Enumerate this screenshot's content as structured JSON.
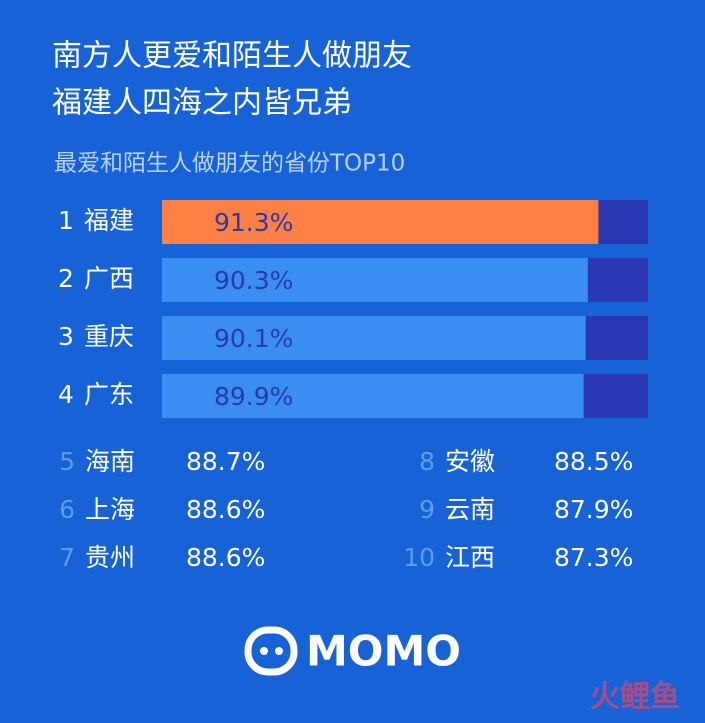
{
  "headline": [
    "南方人更爱和陌生人做朋友",
    "福建人四海之内皆兄弟"
  ],
  "chart_data": {
    "type": "bar",
    "title": "最爱和陌生人做朋友的省份TOP10",
    "ranks": [
      "1",
      "2",
      "3",
      "4"
    ],
    "categories": [
      "福建",
      "广西",
      "重庆",
      "广东"
    ],
    "values": [
      91.3,
      90.3,
      90.1,
      89.9
    ],
    "value_labels": [
      "91.3%",
      "90.3%",
      "90.1%",
      "89.9%"
    ],
    "colors": [
      "#ff8045",
      "#3a8ef2",
      "#3a8ef2",
      "#3a8ef2"
    ],
    "track_color": "#2b38b4",
    "xlim": [
      50,
      96
    ]
  },
  "list": [
    {
      "rank": "5",
      "name": "海南",
      "value": "88.7%"
    },
    {
      "rank": "6",
      "name": "上海",
      "value": "88.6%"
    },
    {
      "rank": "7",
      "name": "贵州",
      "value": "88.6%"
    },
    {
      "rank": "8",
      "name": "安徽",
      "value": "88.5%"
    },
    {
      "rank": "9",
      "name": "云南",
      "value": "87.9%"
    },
    {
      "rank": "10",
      "name": "江西",
      "value": "87.3%"
    }
  ],
  "logo": "MOMO",
  "watermark": "火鲤鱼"
}
